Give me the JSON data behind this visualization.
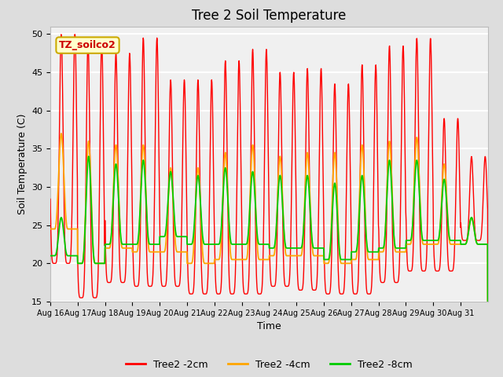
{
  "title": "Tree 2 Soil Temperature",
  "xlabel": "Time",
  "ylabel": "Soil Temperature (C)",
  "ylim": [
    15,
    51
  ],
  "yticks": [
    15,
    20,
    25,
    30,
    35,
    40,
    45,
    50
  ],
  "x_labels": [
    "Aug 16",
    "Aug 17",
    "Aug 18",
    "Aug 19",
    "Aug 20",
    "Aug 21",
    "Aug 22",
    "Aug 23",
    "Aug 24",
    "Aug 25",
    "Aug 26",
    "Aug 27",
    "Aug 28",
    "Aug 29",
    "Aug 30",
    "Aug 31"
  ],
  "annotation_text": "TZ_soilco2",
  "annotation_bg": "#ffffcc",
  "annotation_border": "#ccaa00",
  "line_colors": [
    "#ff0000",
    "#ffa500",
    "#00cc00"
  ],
  "line_labels": [
    "Tree2 -2cm",
    "Tree2 -4cm",
    "Tree2 -8cm"
  ],
  "background_color": "#dddddd",
  "plot_bg": "#f0f0f0",
  "grid_color": "#ffffff",
  "title_fontsize": 12,
  "axis_fontsize": 9,
  "legend_fontsize": 9,
  "days": 16,
  "red_peaks": [
    50.0,
    49.0,
    47.5,
    49.5,
    44.0,
    44.0,
    46.5,
    48.0,
    45.0,
    45.5,
    43.5,
    46.0,
    48.5,
    49.5,
    39.0,
    34.0
  ],
  "red_troughs": [
    20.0,
    15.5,
    17.5,
    17.0,
    17.0,
    16.0,
    16.0,
    16.0,
    17.0,
    16.5,
    16.0,
    16.0,
    17.5,
    19.0,
    19.0,
    23.0
  ],
  "red_peak_pos": [
    0.4,
    0.38,
    0.4,
    0.4,
    0.4,
    0.4,
    0.4,
    0.4,
    0.4,
    0.4,
    0.4,
    0.4,
    0.4,
    0.4,
    0.4,
    0.4
  ],
  "orange_peaks": [
    37.0,
    36.0,
    35.5,
    35.5,
    32.5,
    32.5,
    34.5,
    35.5,
    34.0,
    34.5,
    34.5,
    35.5,
    36.0,
    36.5,
    33.0,
    26.0
  ],
  "orange_troughs": [
    24.5,
    20.0,
    22.0,
    21.5,
    21.5,
    20.0,
    20.5,
    20.5,
    21.0,
    21.0,
    20.0,
    20.5,
    21.5,
    22.5,
    22.5,
    22.5
  ],
  "green_peaks": [
    26.0,
    34.0,
    33.0,
    33.5,
    32.0,
    31.5,
    32.5,
    32.0,
    31.5,
    31.5,
    30.5,
    31.5,
    33.5,
    33.5,
    31.0,
    26.0
  ],
  "green_troughs": [
    21.0,
    20.0,
    22.5,
    22.5,
    23.5,
    22.5,
    22.5,
    22.5,
    22.0,
    22.0,
    20.5,
    21.5,
    22.0,
    23.0,
    23.0,
    22.5
  ]
}
